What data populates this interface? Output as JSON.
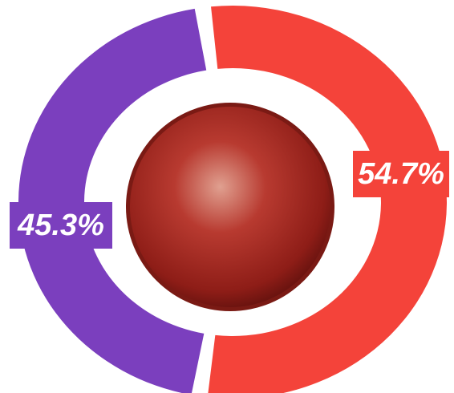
{
  "chart_data": {
    "type": "donut",
    "categories": [
      null,
      null
    ],
    "values": [
      54.7,
      45.3
    ],
    "value_labels": [
      "54.7%",
      "45.3%"
    ],
    "colors": [
      "#f4433a",
      "#7b3fbe"
    ]
  }
}
